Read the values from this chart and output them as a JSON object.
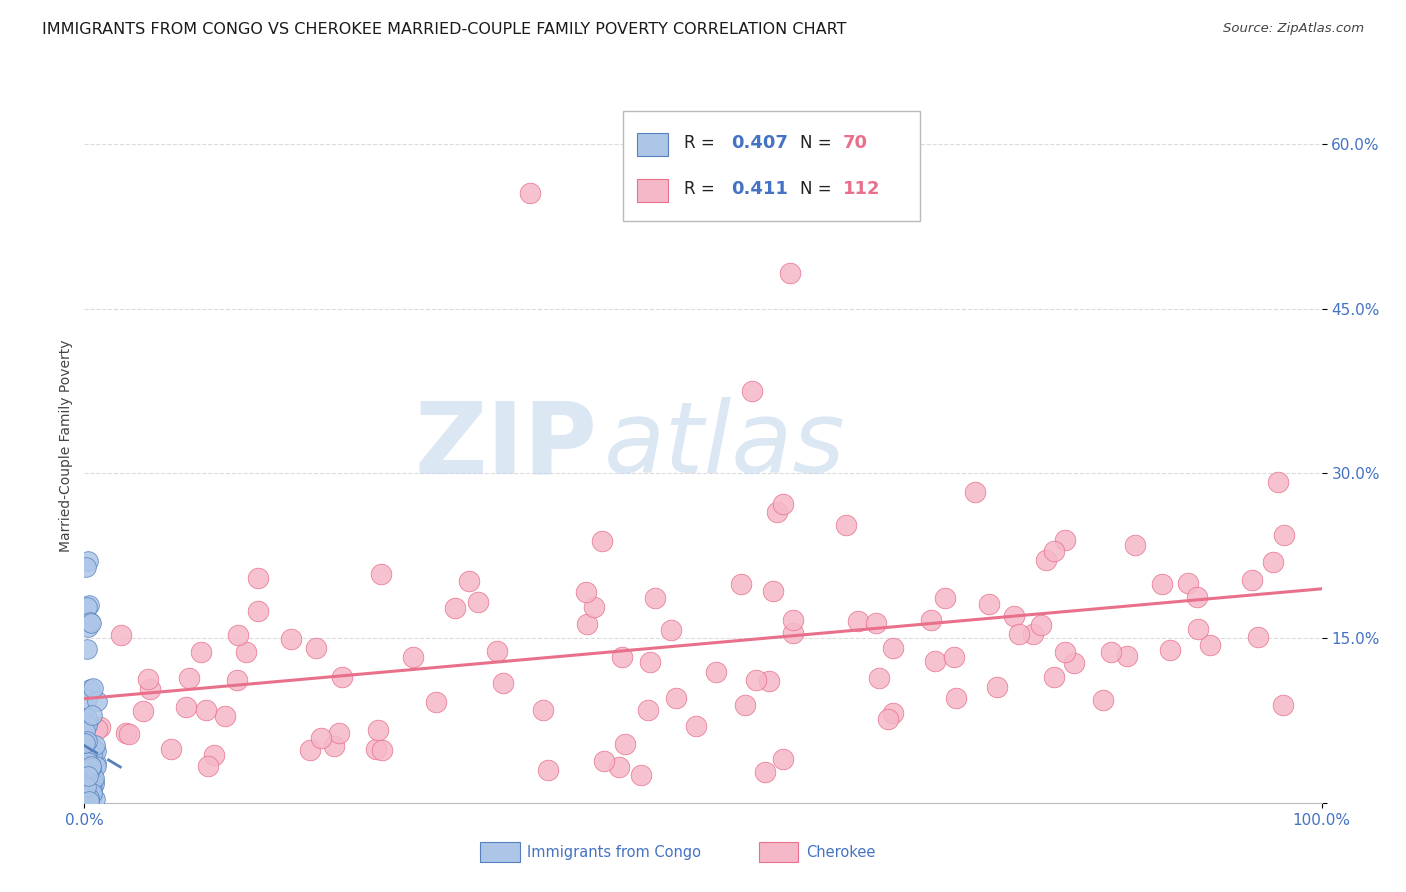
{
  "title": "IMMIGRANTS FROM CONGO VS CHEROKEE MARRIED-COUPLE FAMILY POVERTY CORRELATION CHART",
  "source": "Source: ZipAtlas.com",
  "ylabel": "Married-Couple Family Poverty",
  "xlim": [
    0,
    1.0
  ],
  "ylim": [
    0,
    0.65
  ],
  "congo_color": "#adc6e8",
  "congo_edge_color": "#5580bb",
  "cherokee_color": "#f5b8c8",
  "cherokee_edge_color": "#e8708a",
  "congo_line_color": "#5580bb",
  "cherokee_line_color": "#e8708a",
  "watermark_zip": "ZIP",
  "watermark_atlas": "atlas",
  "background_color": "#ffffff",
  "grid_color": "#d8d8d8",
  "title_fontsize": 11.5,
  "axis_label_fontsize": 10,
  "tick_fontsize": 11,
  "tick_color": "#4472c4",
  "legend_color": "#4472c4",
  "legend_n_color": "#e8708a",
  "r_value_congo": 0.407,
  "n_congo": 70,
  "r_value_cherokee": 0.411,
  "n_cherokee": 112
}
